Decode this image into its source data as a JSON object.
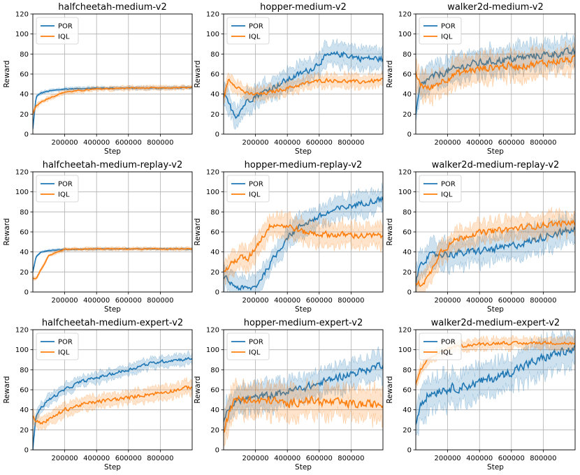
{
  "figure": {
    "series_names": [
      "POR",
      "IQL"
    ],
    "series_colors": [
      "#1f77b4",
      "#ff7f0e"
    ],
    "xlabel": "Step",
    "ylabel": "Reward",
    "grid": true,
    "legend_position": "top-left"
  },
  "chart_data": [
    {
      "type": "line",
      "title": "halfcheetah-medium-v2",
      "xlim": [
        0,
        1000000
      ],
      "ylim": [
        0,
        120
      ],
      "xticks": [
        200000,
        400000,
        600000,
        800000
      ],
      "yticks": [
        0,
        20,
        40,
        60,
        80,
        100,
        120
      ],
      "series": [
        {
          "name": "POR",
          "x": [
            0,
            20000,
            50000,
            100000,
            200000,
            400000,
            600000,
            800000,
            1000000
          ],
          "values": [
            5,
            37,
            41,
            43,
            45,
            46,
            46,
            46,
            46.5
          ],
          "band": 1.5
        },
        {
          "name": "IQL",
          "x": [
            0,
            20000,
            50000,
            100000,
            200000,
            400000,
            600000,
            800000,
            1000000
          ],
          "values": [
            20,
            28,
            32,
            36,
            42,
            45,
            46,
            46,
            46.5
          ],
          "band": 2
        }
      ]
    },
    {
      "type": "line",
      "title": "hopper-medium-v2",
      "xlim": [
        0,
        1000000
      ],
      "ylim": [
        0,
        120
      ],
      "xticks": [
        200000,
        400000,
        600000,
        800000
      ],
      "yticks": [
        0,
        20,
        40,
        60,
        80,
        100,
        120
      ],
      "series": [
        {
          "name": "POR",
          "x": [
            0,
            30000,
            80000,
            150000,
            250000,
            350000,
            450000,
            550000,
            650000,
            750000,
            850000,
            1000000
          ],
          "values": [
            40,
            30,
            18,
            34,
            42,
            50,
            58,
            65,
            78,
            80,
            76,
            75
          ],
          "band": 10
        },
        {
          "name": "IQL",
          "x": [
            0,
            30000,
            80000,
            150000,
            250000,
            350000,
            450000,
            550000,
            650000,
            750000,
            850000,
            1000000
          ],
          "values": [
            35,
            55,
            48,
            40,
            40,
            44,
            48,
            52,
            54,
            53,
            52,
            54
          ],
          "band": 6
        }
      ]
    },
    {
      "type": "line",
      "title": "walker2d-medium-v2",
      "xlim": [
        0,
        1000000
      ],
      "ylim": [
        0,
        120
      ],
      "xticks": [
        200000,
        400000,
        600000,
        800000
      ],
      "yticks": [
        0,
        20,
        40,
        60,
        80,
        100,
        120
      ],
      "series": [
        {
          "name": "POR",
          "x": [
            0,
            30000,
            80000,
            150000,
            250000,
            350000,
            450000,
            550000,
            650000,
            750000,
            850000,
            1000000
          ],
          "values": [
            20,
            48,
            55,
            60,
            65,
            70,
            72,
            74,
            76,
            78,
            80,
            82
          ],
          "band": 12
        },
        {
          "name": "IQL",
          "x": [
            0,
            30000,
            80000,
            150000,
            250000,
            350000,
            450000,
            550000,
            650000,
            750000,
            850000,
            1000000
          ],
          "values": [
            60,
            50,
            45,
            52,
            60,
            64,
            66,
            68,
            68,
            70,
            72,
            75
          ],
          "band": 12
        }
      ]
    },
    {
      "type": "line",
      "title": "halfcheetah-medium-replay-v2",
      "xlim": [
        0,
        1000000
      ],
      "ylim": [
        0,
        120
      ],
      "xticks": [
        200000,
        400000,
        600000,
        800000
      ],
      "yticks": [
        0,
        20,
        40,
        60,
        80,
        100,
        120
      ],
      "series": [
        {
          "name": "POR",
          "x": [
            0,
            20000,
            50000,
            100000,
            200000,
            400000,
            600000,
            800000,
            1000000
          ],
          "values": [
            20,
            35,
            40,
            41.5,
            42.5,
            43,
            43,
            43,
            43
          ],
          "band": 1
        },
        {
          "name": "IQL",
          "x": [
            0,
            20000,
            50000,
            100000,
            200000,
            400000,
            600000,
            800000,
            1000000
          ],
          "values": [
            14,
            13,
            22,
            36,
            42.5,
            43,
            43,
            43,
            43
          ],
          "band": 1.5
        }
      ]
    },
    {
      "type": "line",
      "title": "hopper-medium-replay-v2",
      "xlim": [
        0,
        1000000
      ],
      "ylim": [
        0,
        120
      ],
      "xticks": [
        200000,
        400000,
        600000,
        800000
      ],
      "yticks": [
        0,
        20,
        40,
        60,
        80,
        100,
        120
      ],
      "series": [
        {
          "name": "POR",
          "x": [
            0,
            50000,
            100000,
            150000,
            200000,
            300000,
            400000,
            500000,
            600000,
            700000,
            800000,
            900000,
            1000000
          ],
          "values": [
            15,
            8,
            4,
            3,
            5,
            30,
            55,
            68,
            75,
            82,
            86,
            90,
            93
          ],
          "band": 10
        },
        {
          "name": "IQL",
          "x": [
            0,
            50000,
            100000,
            150000,
            200000,
            300000,
            400000,
            500000,
            600000,
            700000,
            800000,
            900000,
            1000000
          ],
          "values": [
            20,
            28,
            35,
            32,
            45,
            68,
            66,
            60,
            58,
            57,
            57,
            56,
            56
          ],
          "band": 10
        }
      ]
    },
    {
      "type": "line",
      "title": "walker2d-medium-replay-v2",
      "xlim": [
        0,
        1000000
      ],
      "ylim": [
        0,
        120
      ],
      "xticks": [
        200000,
        400000,
        600000,
        800000
      ],
      "yticks": [
        0,
        20,
        40,
        60,
        80,
        100,
        120
      ],
      "series": [
        {
          "name": "POR",
          "x": [
            0,
            30000,
            80000,
            150000,
            250000,
            350000,
            450000,
            550000,
            650000,
            750000,
            850000,
            1000000
          ],
          "values": [
            8,
            30,
            35,
            38,
            38,
            40,
            42,
            44,
            48,
            52,
            58,
            62
          ],
          "band": 12
        },
        {
          "name": "IQL",
          "x": [
            0,
            30000,
            80000,
            150000,
            250000,
            350000,
            450000,
            550000,
            650000,
            750000,
            850000,
            1000000
          ],
          "values": [
            8,
            8,
            15,
            40,
            52,
            58,
            60,
            62,
            64,
            66,
            68,
            69
          ],
          "band": 10
        }
      ]
    },
    {
      "type": "line",
      "title": "halfcheetah-medium-expert-v2",
      "xlim": [
        0,
        1000000
      ],
      "ylim": [
        0,
        120
      ],
      "xticks": [
        200000,
        400000,
        600000,
        800000
      ],
      "yticks": [
        0,
        20,
        40,
        60,
        80,
        100,
        120
      ],
      "series": [
        {
          "name": "POR",
          "x": [
            0,
            20000,
            50000,
            100000,
            200000,
            300000,
            400000,
            500000,
            600000,
            700000,
            800000,
            900000,
            1000000
          ],
          "values": [
            0,
            35,
            42,
            50,
            60,
            68,
            72,
            76,
            80,
            85,
            88,
            90,
            91
          ],
          "band": 5
        },
        {
          "name": "IQL",
          "x": [
            0,
            20000,
            50000,
            100000,
            200000,
            300000,
            400000,
            500000,
            600000,
            700000,
            800000,
            900000,
            1000000
          ],
          "values": [
            35,
            28,
            27,
            30,
            40,
            45,
            48,
            50,
            52,
            55,
            57,
            60,
            63
          ],
          "band": 6
        }
      ]
    },
    {
      "type": "line",
      "title": "hopper-medium-expert-v2",
      "xlim": [
        0,
        1000000
      ],
      "ylim": [
        0,
        120
      ],
      "xticks": [
        200000,
        400000,
        600000,
        800000
      ],
      "yticks": [
        0,
        20,
        40,
        60,
        80,
        100,
        120
      ],
      "series": [
        {
          "name": "POR",
          "x": [
            0,
            50000,
            100000,
            200000,
            300000,
            400000,
            500000,
            600000,
            700000,
            800000,
            900000,
            1000000
          ],
          "values": [
            30,
            45,
            50,
            52,
            55,
            58,
            62,
            66,
            72,
            76,
            80,
            86
          ],
          "band": 12
        },
        {
          "name": "IQL",
          "x": [
            0,
            50000,
            100000,
            200000,
            300000,
            400000,
            500000,
            600000,
            700000,
            800000,
            900000,
            1000000
          ],
          "values": [
            20,
            45,
            52,
            48,
            50,
            45,
            50,
            48,
            47,
            46,
            45,
            46
          ],
          "band": 14
        }
      ]
    },
    {
      "type": "line",
      "title": "walker2d-medium-expert-v2",
      "xlim": [
        0,
        1000000
      ],
      "ylim": [
        0,
        120
      ],
      "xticks": [
        200000,
        400000,
        600000,
        800000
      ],
      "yticks": [
        0,
        20,
        40,
        60,
        80,
        100,
        120
      ],
      "series": [
        {
          "name": "POR",
          "x": [
            0,
            30000,
            80000,
            150000,
            250000,
            350000,
            450000,
            550000,
            650000,
            750000,
            850000,
            1000000
          ],
          "values": [
            25,
            48,
            55,
            60,
            62,
            65,
            70,
            75,
            82,
            88,
            95,
            100
          ],
          "band": 15
        },
        {
          "name": "IQL",
          "x": [
            0,
            30000,
            80000,
            150000,
            250000,
            350000,
            450000,
            550000,
            650000,
            750000,
            850000,
            1000000
          ],
          "values": [
            65,
            80,
            90,
            98,
            103,
            105,
            106,
            107,
            106,
            107,
            107,
            106
          ],
          "band": 5
        }
      ]
    }
  ]
}
